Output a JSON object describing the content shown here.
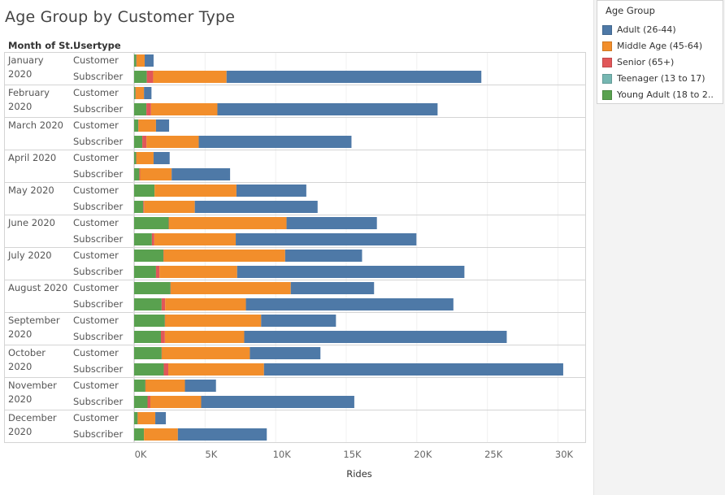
{
  "title": "Age Group by Customer Type",
  "headers": {
    "month": "Month of St..",
    "usertype": "Usertype"
  },
  "legend": {
    "title": "Age Group",
    "items": [
      {
        "label": "Adult (26-44)",
        "color": "#4e79a7"
      },
      {
        "label": "Middle Age (45-64)",
        "color": "#f28e2b"
      },
      {
        "label": "Senior (65+)",
        "color": "#e15759"
      },
      {
        "label": "Teenager (13 to 17)",
        "color": "#76b7b2"
      },
      {
        "label": "Young Adult (18 to 2..",
        "color": "#59a14f"
      }
    ]
  },
  "chart_data": {
    "type": "bar",
    "orientation": "horizontal",
    "stacked": true,
    "title": "Age Group by Customer Type",
    "xlabel": "Rides",
    "xlim": [
      0,
      31500
    ],
    "xticks": [
      "0K",
      "5K",
      "10K",
      "15K",
      "20K",
      "25K",
      "30K"
    ],
    "xtick_values": [
      0,
      5000,
      10000,
      15000,
      20000,
      25000,
      30000
    ],
    "grid": true,
    "legend_position": "right",
    "stack_order": [
      "Young Adult (18 to 2..",
      "Teenager (13 to 17)",
      "Senior (65+)",
      "Middle Age (45-64)",
      "Adult (26-44)"
    ],
    "groups": [
      {
        "month": [
          "January",
          "2020"
        ],
        "rows": [
          {
            "usertype": "Customer",
            "young": 150,
            "teen": 10,
            "senior": 20,
            "middle": 570,
            "adult": 630
          },
          {
            "usertype": "Subscriber",
            "young": 900,
            "teen": 0,
            "senior": 450,
            "middle": 5200,
            "adult": 18050
          }
        ]
      },
      {
        "month": [
          "February",
          "2020"
        ],
        "rows": [
          {
            "usertype": "Customer",
            "young": 100,
            "teen": 0,
            "senior": 20,
            "middle": 580,
            "adult": 530
          },
          {
            "usertype": "Subscriber",
            "young": 870,
            "teen": 0,
            "senior": 330,
            "middle": 4700,
            "adult": 15600
          }
        ]
      },
      {
        "month": [
          "March 2020"
        ],
        "rows": [
          {
            "usertype": "Customer",
            "young": 300,
            "teen": 0,
            "senior": 20,
            "middle": 1230,
            "adult": 930
          },
          {
            "usertype": "Subscriber",
            "young": 580,
            "teen": 0,
            "senior": 300,
            "middle": 3700,
            "adult": 10820
          }
        ]
      },
      {
        "month": [
          "April 2020"
        ],
        "rows": [
          {
            "usertype": "Customer",
            "young": 150,
            "teen": 0,
            "senior": 20,
            "middle": 1210,
            "adult": 1140
          },
          {
            "usertype": "Subscriber",
            "young": 370,
            "teen": 0,
            "senior": 60,
            "middle": 2230,
            "adult": 4140
          }
        ]
      },
      {
        "month": [
          "May 2020"
        ],
        "rows": [
          {
            "usertype": "Customer",
            "young": 1450,
            "teen": 0,
            "senior": 0,
            "middle": 5800,
            "adult": 4950
          },
          {
            "usertype": "Subscriber",
            "young": 650,
            "teen": 0,
            "senior": 60,
            "middle": 3590,
            "adult": 8700
          }
        ]
      },
      {
        "month": [
          "June 2020"
        ],
        "rows": [
          {
            "usertype": "Customer",
            "young": 2450,
            "teen": 0,
            "senior": 20,
            "middle": 8330,
            "adult": 6400
          },
          {
            "usertype": "Subscriber",
            "young": 1260,
            "teen": 0,
            "senior": 170,
            "middle": 5770,
            "adult": 12800
          }
        ]
      },
      {
        "month": [
          "July 2020"
        ],
        "rows": [
          {
            "usertype": "Customer",
            "young": 2080,
            "teen": 0,
            "senior": 20,
            "middle": 8600,
            "adult": 5450
          },
          {
            "usertype": "Subscriber",
            "young": 1550,
            "teen": 0,
            "senior": 250,
            "middle": 5500,
            "adult": 16100
          }
        ]
      },
      {
        "month": [
          "August 2020"
        ],
        "rows": [
          {
            "usertype": "Customer",
            "young": 2580,
            "teen": 0,
            "senior": 20,
            "middle": 8500,
            "adult": 5900
          },
          {
            "usertype": "Subscriber",
            "young": 1950,
            "teen": 0,
            "senior": 250,
            "middle": 5720,
            "adult": 14700
          }
        ]
      },
      {
        "month": [
          "September",
          "2020"
        ],
        "rows": [
          {
            "usertype": "Customer",
            "young": 2180,
            "teen": 0,
            "senior": 20,
            "middle": 6800,
            "adult": 5300
          },
          {
            "usertype": "Subscriber",
            "young": 1900,
            "teen": 0,
            "senior": 280,
            "middle": 5620,
            "adult": 18600
          }
        ]
      },
      {
        "month": [
          "October",
          "2020"
        ],
        "rows": [
          {
            "usertype": "Customer",
            "young": 1950,
            "teen": 0,
            "senior": 20,
            "middle": 6230,
            "adult": 5000
          },
          {
            "usertype": "Subscriber",
            "young": 2100,
            "teen": 0,
            "senior": 320,
            "middle": 6780,
            "adult": 21200
          }
        ]
      },
      {
        "month": [
          "November",
          "2020"
        ],
        "rows": [
          {
            "usertype": "Customer",
            "young": 800,
            "teen": 0,
            "senior": 20,
            "middle": 2780,
            "adult": 2200
          },
          {
            "usertype": "Subscriber",
            "young": 950,
            "teen": 0,
            "senior": 200,
            "middle": 3600,
            "adult": 10850
          }
        ]
      },
      {
        "month": [
          "December",
          "2020"
        ],
        "rows": [
          {
            "usertype": "Customer",
            "young": 250,
            "teen": 0,
            "senior": 20,
            "middle": 1230,
            "adult": 750
          },
          {
            "usertype": "Subscriber",
            "young": 700,
            "teen": 0,
            "senior": 0,
            "middle": 2400,
            "adult": 6300
          }
        ]
      }
    ]
  }
}
